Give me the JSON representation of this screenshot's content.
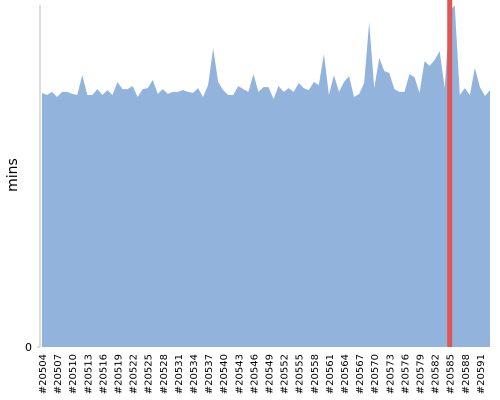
{
  "chart_data": {
    "type": "area",
    "y_label": "mins",
    "categories": [
      "#20504",
      null,
      null,
      "#20507",
      null,
      null,
      "#20510",
      null,
      null,
      "#20513",
      null,
      null,
      "#20516",
      null,
      null,
      "#20519",
      null,
      null,
      "#20522",
      null,
      null,
      "#20525",
      null,
      null,
      "#20528",
      null,
      null,
      "#20531",
      null,
      null,
      "#20534",
      null,
      null,
      "#20537",
      null,
      null,
      "#20540",
      null,
      null,
      "#20543",
      null,
      null,
      "#20546",
      null,
      null,
      "#20549",
      null,
      null,
      "#20552",
      null,
      null,
      "#20555",
      null,
      null,
      "#20558",
      null,
      null,
      "#20561",
      null,
      null,
      "#20564",
      null,
      null,
      "#20567",
      null,
      null,
      "#20570",
      null,
      null,
      "#20573",
      null,
      null,
      "#20576",
      null,
      null,
      "#20579",
      null,
      null,
      "#20582",
      null,
      null,
      "#20585",
      null,
      null,
      "#20588",
      null,
      null,
      "#20591",
      null,
      null
    ],
    "values": [
      74.3,
      73.7,
      74.6,
      73.1,
      74.6,
      74.6,
      74.0,
      73.7,
      79.5,
      73.7,
      73.7,
      75.4,
      73.7,
      75.1,
      73.7,
      77.5,
      75.4,
      75.4,
      76.3,
      73.1,
      75.4,
      75.7,
      78.1,
      74.0,
      75.4,
      74.0,
      74.6,
      74.6,
      75.1,
      74.6,
      74.3,
      75.7,
      73.1,
      76.6,
      87.4,
      77.5,
      75.1,
      73.7,
      73.7,
      76.3,
      75.4,
      74.6,
      79.8,
      74.6,
      76.0,
      76.0,
      72.5,
      76.3,
      74.6,
      75.7,
      74.6,
      77.2,
      75.7,
      75.1,
      77.5,
      76.6,
      85.7,
      73.7,
      79.5,
      74.6,
      77.5,
      79.2,
      73.1,
      74.0,
      77.2,
      95.0,
      75.7,
      84.5,
      80.7,
      80.1,
      75.4,
      74.6,
      74.6,
      79.8,
      78.9,
      74.3,
      83.6,
      82.2,
      83.9,
      86.5,
      75.7,
      98.0,
      100.0,
      73.7,
      75.7,
      73.7,
      81.6,
      76.0,
      73.4,
      75.1
    ],
    "color": "#92b4dc",
    "ylim": [
      0,
      100
    ],
    "yticks": [
      0
    ],
    "highlight": {
      "index": 81,
      "color": "#e05555"
    }
  }
}
